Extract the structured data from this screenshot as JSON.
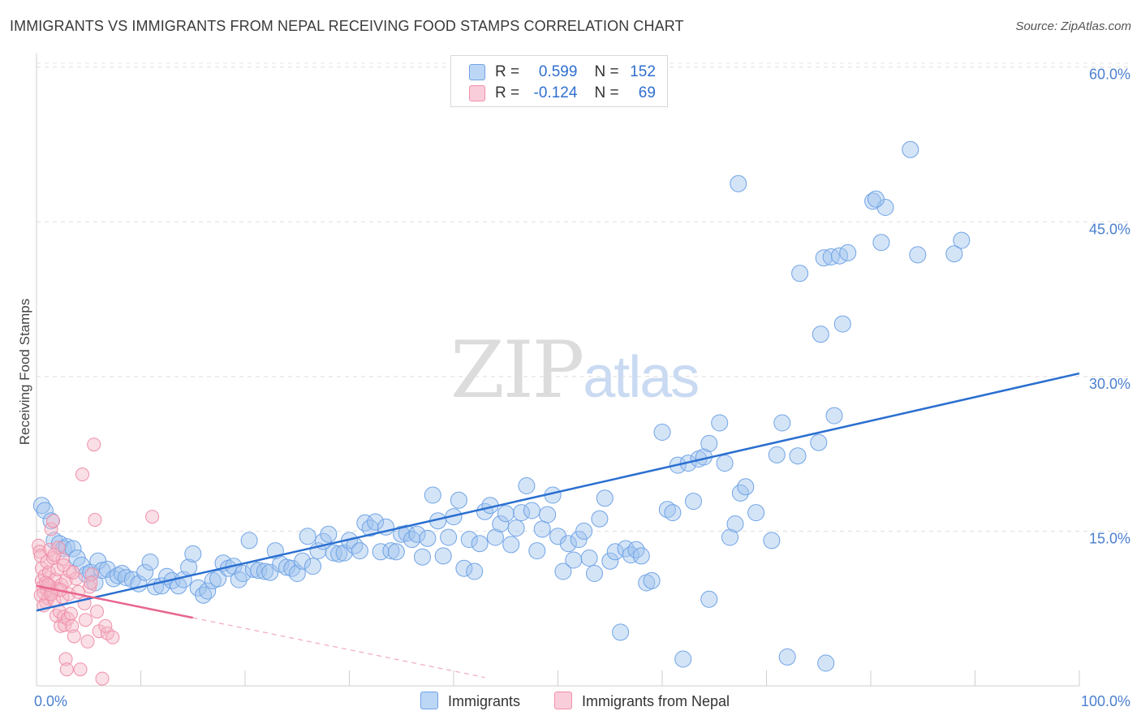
{
  "header": {
    "title": "IMMIGRANTS VS IMMIGRANTS FROM NEPAL RECEIVING FOOD STAMPS CORRELATION CHART",
    "source": "Source: ZipAtlas.com"
  },
  "watermark": {
    "zip": "ZIP",
    "atlas": "atlas"
  },
  "legend": {
    "r_label": "R =",
    "n_label": "N =",
    "rows": [
      {
        "name": "Immigrants",
        "r": "0.599",
        "n": "152",
        "color": "#9fc3ee"
      },
      {
        "name": "Immigrants from Nepal",
        "r": "-0.124",
        "n": "69",
        "color": "#f5b7c8"
      }
    ]
  },
  "chart_data": {
    "type": "scatter",
    "title": "IMMIGRANTS VS IMMIGRANTS FROM NEPAL RECEIVING FOOD STAMPS CORRELATION CHART",
    "xlabel": "",
    "ylabel": "Receiving Food Stamps",
    "xlim": [
      0,
      100
    ],
    "ylim": [
      0,
      61
    ],
    "x_tick_labels": [
      "0.0%",
      "100.0%"
    ],
    "y_ticks": [
      15,
      30,
      45,
      60
    ],
    "y_tick_labels": [
      "15.0%",
      "30.0%",
      "45.0%",
      "60.0%"
    ],
    "grid": true,
    "legend_position": "top-center",
    "series": [
      {
        "name": "Immigrants",
        "color": "#6fa3e6",
        "line_color": "#2a6fd0",
        "r": 0.599,
        "n": 152,
        "trend": {
          "x0": 0,
          "y0": 7.3,
          "x1": 100,
          "y1": 30.3
        },
        "points": [
          [
            0.5,
            17.5
          ],
          [
            0.8,
            17.0
          ],
          [
            1.4,
            16.0
          ],
          [
            1.7,
            14.1
          ],
          [
            2.2,
            13.8
          ],
          [
            2.6,
            13.3
          ],
          [
            2.9,
            13.5
          ],
          [
            3.5,
            13.3
          ],
          [
            3.9,
            12.4
          ],
          [
            4.3,
            11.7
          ],
          [
            4.8,
            10.8
          ],
          [
            5.2,
            11.0
          ],
          [
            5.6,
            10.0
          ],
          [
            5.9,
            12.1
          ],
          [
            6.3,
            11.2
          ],
          [
            6.8,
            11.3
          ],
          [
            7.4,
            10.4
          ],
          [
            7.8,
            10.7
          ],
          [
            8.2,
            10.9
          ],
          [
            8.6,
            10.5
          ],
          [
            9.2,
            10.3
          ],
          [
            9.8,
            9.9
          ],
          [
            10.4,
            11.0
          ],
          [
            10.9,
            12.0
          ],
          [
            11.4,
            9.6
          ],
          [
            12.0,
            9.7
          ],
          [
            12.5,
            10.6
          ],
          [
            13.0,
            10.2
          ],
          [
            13.6,
            9.7
          ],
          [
            14.1,
            10.3
          ],
          [
            14.6,
            11.5
          ],
          [
            15.0,
            12.8
          ],
          [
            15.5,
            9.5
          ],
          [
            16.0,
            8.8
          ],
          [
            16.4,
            9.2
          ],
          [
            16.9,
            10.2
          ],
          [
            17.4,
            10.4
          ],
          [
            17.9,
            11.9
          ],
          [
            18.4,
            11.4
          ],
          [
            18.9,
            11.6
          ],
          [
            19.4,
            10.3
          ],
          [
            19.8,
            10.9
          ],
          [
            20.4,
            14.1
          ],
          [
            20.8,
            11.3
          ],
          [
            21.3,
            11.2
          ],
          [
            21.9,
            11.1
          ],
          [
            22.4,
            11.0
          ],
          [
            22.9,
            13.1
          ],
          [
            23.4,
            11.8
          ],
          [
            24.0,
            11.5
          ],
          [
            24.5,
            11.4
          ],
          [
            25.0,
            10.9
          ],
          [
            25.5,
            12.1
          ],
          [
            26.0,
            14.5
          ],
          [
            26.5,
            11.6
          ],
          [
            27.0,
            13.1
          ],
          [
            27.5,
            14.0
          ],
          [
            28.0,
            14.7
          ],
          [
            28.5,
            12.9
          ],
          [
            29.0,
            12.8
          ],
          [
            29.5,
            12.9
          ],
          [
            30.0,
            14.1
          ],
          [
            30.5,
            13.6
          ],
          [
            31.0,
            13.1
          ],
          [
            31.5,
            15.8
          ],
          [
            32.0,
            15.3
          ],
          [
            32.5,
            15.9
          ],
          [
            33.0,
            13.0
          ],
          [
            33.5,
            15.4
          ],
          [
            34.0,
            13.1
          ],
          [
            34.5,
            13.0
          ],
          [
            35.0,
            14.7
          ],
          [
            35.5,
            14.8
          ],
          [
            36.0,
            14.2
          ],
          [
            36.5,
            14.7
          ],
          [
            37.0,
            12.5
          ],
          [
            37.5,
            14.3
          ],
          [
            38.0,
            18.5
          ],
          [
            38.5,
            16.0
          ],
          [
            39.0,
            12.6
          ],
          [
            39.5,
            14.4
          ],
          [
            40.0,
            16.4
          ],
          [
            40.5,
            18.0
          ],
          [
            41.0,
            11.4
          ],
          [
            41.5,
            14.2
          ],
          [
            42.0,
            11.1
          ],
          [
            42.5,
            13.8
          ],
          [
            43.0,
            16.9
          ],
          [
            43.5,
            17.5
          ],
          [
            44.0,
            14.4
          ],
          [
            44.5,
            15.7
          ],
          [
            45.0,
            16.7
          ],
          [
            45.5,
            13.7
          ],
          [
            46.0,
            15.3
          ],
          [
            46.5,
            16.8
          ],
          [
            47.0,
            19.4
          ],
          [
            47.5,
            17.0
          ],
          [
            48.0,
            13.1
          ],
          [
            48.5,
            15.2
          ],
          [
            49.0,
            16.6
          ],
          [
            49.5,
            18.5
          ],
          [
            50.0,
            14.5
          ],
          [
            50.5,
            11.1
          ],
          [
            51.0,
            13.8
          ],
          [
            51.5,
            12.2
          ],
          [
            52.0,
            14.2
          ],
          [
            52.5,
            15.0
          ],
          [
            53.0,
            12.4
          ],
          [
            53.5,
            10.9
          ],
          [
            54.0,
            16.2
          ],
          [
            54.5,
            18.2
          ],
          [
            55.0,
            12.1
          ],
          [
            55.5,
            13.0
          ],
          [
            56.0,
            5.2
          ],
          [
            56.5,
            13.3
          ],
          [
            57.0,
            12.7
          ],
          [
            57.5,
            13.2
          ],
          [
            58.0,
            12.6
          ],
          [
            58.5,
            10.0
          ],
          [
            59.0,
            10.2
          ],
          [
            60.0,
            24.6
          ],
          [
            60.5,
            17.1
          ],
          [
            61.0,
            16.8
          ],
          [
            61.5,
            21.4
          ],
          [
            62.0,
            2.6
          ],
          [
            62.5,
            21.6
          ],
          [
            63.0,
            17.9
          ],
          [
            63.5,
            22.0
          ],
          [
            64.0,
            22.2
          ],
          [
            64.5,
            23.5
          ],
          [
            64.5,
            8.4
          ],
          [
            65.5,
            25.5
          ],
          [
            66.0,
            21.6
          ],
          [
            66.5,
            14.4
          ],
          [
            67.0,
            15.7
          ],
          [
            67.5,
            18.7
          ],
          [
            68.0,
            19.3
          ],
          [
            69.0,
            16.8
          ],
          [
            70.5,
            14.1
          ],
          [
            71.0,
            22.4
          ],
          [
            71.5,
            25.5
          ],
          [
            72.0,
            2.8
          ],
          [
            73.0,
            22.3
          ],
          [
            75.0,
            23.6
          ],
          [
            75.7,
            2.2
          ],
          [
            76.5,
            26.2
          ],
          [
            67.3,
            48.7
          ],
          [
            73.2,
            40.0
          ],
          [
            75.2,
            34.1
          ],
          [
            75.5,
            41.5
          ],
          [
            76.2,
            41.6
          ],
          [
            77.0,
            41.7
          ],
          [
            77.3,
            35.1
          ],
          [
            77.8,
            42.0
          ],
          [
            80.2,
            47.0
          ],
          [
            81.4,
            46.4
          ],
          [
            80.5,
            47.2
          ],
          [
            81.0,
            43.0
          ],
          [
            83.8,
            52.0
          ],
          [
            84.5,
            41.8
          ],
          [
            88.0,
            41.9
          ],
          [
            88.7,
            43.2
          ]
        ]
      },
      {
        "name": "Immigrants from Nepal",
        "color": "#f090aa",
        "line_color": "#e8668e",
        "r": -0.124,
        "n": 69,
        "trend": {
          "x0": 0,
          "y0": 9.7,
          "x1": 15,
          "y1": 6.6
        },
        "points": [
          [
            0.2,
            13.6
          ],
          [
            0.3,
            13.0
          ],
          [
            0.4,
            12.6
          ],
          [
            0.5,
            11.4
          ],
          [
            0.5,
            10.2
          ],
          [
            0.6,
            9.6
          ],
          [
            0.7,
            9.0
          ],
          [
            0.8,
            10.7
          ],
          [
            0.9,
            8.1
          ],
          [
            1.0,
            12.0
          ],
          [
            1.0,
            9.3
          ],
          [
            1.1,
            8.5
          ],
          [
            1.2,
            11.0
          ],
          [
            1.3,
            13.2
          ],
          [
            1.3,
            9.7
          ],
          [
            1.4,
            15.2
          ],
          [
            1.5,
            9.2
          ],
          [
            1.6,
            12.4
          ],
          [
            1.7,
            8.3
          ],
          [
            1.8,
            10.3
          ],
          [
            1.9,
            6.8
          ],
          [
            2.0,
            11.3
          ],
          [
            2.0,
            9.4
          ],
          [
            2.1,
            13.4
          ],
          [
            2.2,
            7.2
          ],
          [
            2.3,
            5.8
          ],
          [
            2.4,
            9.8
          ],
          [
            2.5,
            12.3
          ],
          [
            2.5,
            8.6
          ],
          [
            2.6,
            6.7
          ],
          [
            2.7,
            5.9
          ],
          [
            2.8,
            10.2
          ],
          [
            2.8,
            2.6
          ],
          [
            2.9,
            1.6
          ],
          [
            3.0,
            6.5
          ],
          [
            3.1,
            8.9
          ],
          [
            3.2,
            11.1
          ],
          [
            3.3,
            7.0
          ],
          [
            3.4,
            5.8
          ],
          [
            3.6,
            4.8
          ],
          [
            3.8,
            10.4
          ],
          [
            4.0,
            9.1
          ],
          [
            4.2,
            1.6
          ],
          [
            4.4,
            20.5
          ],
          [
            4.7,
            6.4
          ],
          [
            4.9,
            4.3
          ],
          [
            5.1,
            9.6
          ],
          [
            5.3,
            10.8
          ],
          [
            5.5,
            23.4
          ],
          [
            5.6,
            16.1
          ],
          [
            5.8,
            7.2
          ],
          [
            6.0,
            5.3
          ],
          [
            6.3,
            0.7
          ],
          [
            6.8,
            5.1
          ],
          [
            7.3,
            4.7
          ],
          [
            11.1,
            16.4
          ],
          [
            1.6,
            16.0
          ],
          [
            0.9,
            10.0
          ],
          [
            1.7,
            12.7
          ],
          [
            2.3,
            9.3
          ],
          [
            3.5,
            11.0
          ],
          [
            5.2,
            10.0
          ],
          [
            0.4,
            8.8
          ],
          [
            1.1,
            9.8
          ],
          [
            2.6,
            11.7
          ],
          [
            1.4,
            8.9
          ],
          [
            4.6,
            8.0
          ],
          [
            6.6,
            5.8
          ],
          [
            0.7,
            7.8
          ]
        ]
      }
    ]
  }
}
